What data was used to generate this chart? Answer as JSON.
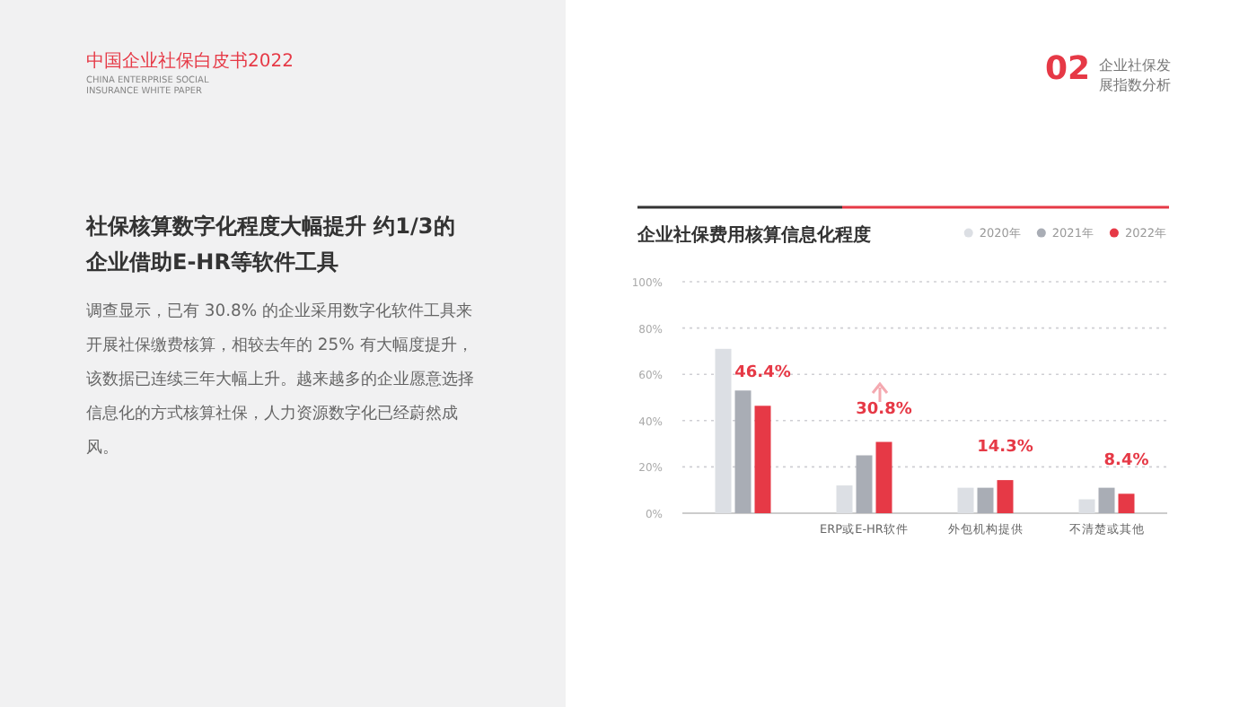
{
  "chart_data": {
    "type": "bar",
    "title": "企业社保费用核算信息化程度",
    "categories": [
      null,
      "ERP或E-HR软件",
      "外包机构提供",
      "不清楚或其他"
    ],
    "series": [
      {
        "name": "2020年",
        "color": "#dcdfe4",
        "values": [
          71,
          12,
          11,
          6
        ]
      },
      {
        "name": "2021年",
        "color": "#a9adb5",
        "values": [
          53,
          25,
          11,
          11
        ]
      },
      {
        "name": "2022年",
        "color": "#e63946",
        "values": [
          46.4,
          30.8,
          14.3,
          8.4
        ],
        "value_labels": [
          "46.4%",
          "30.8%",
          "14.3%",
          "8.4%"
        ]
      }
    ],
    "ylim": [
      0,
      100
    ],
    "yticks": [
      {
        "value": 0,
        "label": "0%"
      },
      {
        "value": 20,
        "label": "20%"
      },
      {
        "value": 40,
        "label": "40%"
      },
      {
        "value": 60,
        "label": "60%"
      },
      {
        "value": 80,
        "label": "80%"
      },
      {
        "value": 100,
        "label": "100%"
      }
    ],
    "grid": "y",
    "legend": "top right",
    "annotations": [
      "中国企业社保白皮书2022",
      "CHINA ENTERPRISE SOCIAL INSURANCE WHITE PAPER",
      "02",
      "企业社保发展指数分析",
      "社保核算数字化程度大幅提升 约1/3的企业借助E-HR等软件工具",
      "调查显示，已有 30.8% 的企业采用数字化软件工具来开展社保缴费核算，相较去年的 25% 有大幅度提升，该数据已连续三年大幅上升。越来越多的企业愿意选择信息化的方式核算社保，人力资源数字化已经蔚然成风。"
    ]
  }
}
